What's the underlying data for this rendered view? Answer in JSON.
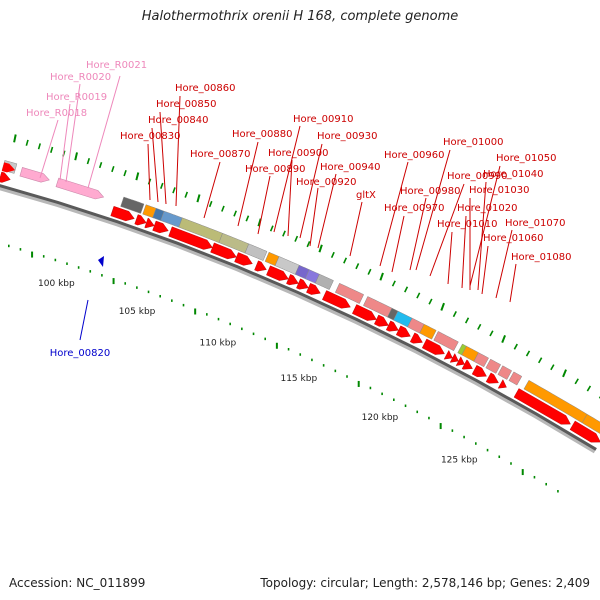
{
  "title": "Halothermothrix orenii H 168, complete genome",
  "accession": "Accession: NC_011899",
  "summary": "Topology: circular; Length: 2,578,146 bp; Genes: 2,409",
  "colors": {
    "gene_label": "#cc0000",
    "rna_label": "#ee88bb",
    "selected_label": "#0000cc",
    "cds": "#ff0000",
    "rrna": "#ffaad0",
    "tick": "#008800"
  },
  "scale_labels": [
    "100 kbp",
    "105 kbp",
    "110 kbp",
    "115 kbp",
    "120 kbp",
    "125 kbp"
  ],
  "selected_gene": "Hore_00820",
  "rna_labels": [
    "Hore_R0021",
    "Hore_R0020",
    "Hore_R0019",
    "Hore_R0018"
  ],
  "gene_labels": [
    "Hore_00860",
    "Hore_00850",
    "Hore_00840",
    "Hore_00830",
    "Hore_00880",
    "Hore_00870",
    "Hore_00910",
    "Hore_00930",
    "Hore_00900",
    "Hore_00890",
    "Hore_00940",
    "Hore_00920",
    "gltX",
    "Hore_01000",
    "Hore_00960",
    "Hore_01050",
    "Hore_00990",
    "Hore_01040",
    "Hore_00980",
    "Hore_01030",
    "Hore_00970",
    "Hore_01020",
    "Hore_01010",
    "Hore_01070",
    "Hore_01060",
    "Hore_01080"
  ]
}
